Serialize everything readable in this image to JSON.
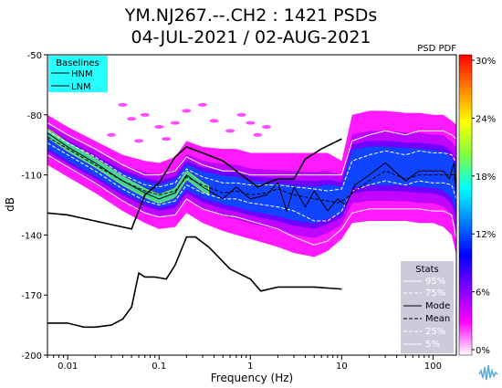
{
  "title_line1": "YM.NJ267.--.CH2 : 1421 PSDs",
  "title_line2": "04-JUL-2021 / 02-AUG-2021",
  "chart_data": {
    "type": "heatmap",
    "xlabel": "Frequency (Hz)",
    "ylabel": "dB",
    "xscale": "log",
    "xlim": [
      0.006,
      180
    ],
    "ylim": [
      -200,
      -50
    ],
    "y_ticks": [
      -50,
      -80,
      -110,
      -140,
      -170,
      -200
    ],
    "x_ticks": [
      {
        "value": 0.01,
        "label": "0.01"
      },
      {
        "value": 0.1,
        "label": "0.1"
      },
      {
        "value": 1,
        "label": "1"
      },
      {
        "value": 10,
        "label": "10"
      },
      {
        "value": 100,
        "label": "100"
      }
    ],
    "colorbar": {
      "label": "PSD PDF",
      "ticks": [
        "30%",
        "24%",
        "18%",
        "12%",
        "6%",
        "0%"
      ],
      "colors": [
        "#ff0000",
        "#ff8000",
        "#ffff00",
        "#80ff40",
        "#00ffff",
        "#0080ff",
        "#0000ff",
        "#8000ff",
        "#ff00ff",
        "#ffffff"
      ]
    },
    "baselines_legend": {
      "title": "Baselines",
      "items": [
        "HNM",
        "LNM"
      ]
    },
    "stats_legend": {
      "title": "Stats",
      "items": [
        "95%",
        "75%",
        "Mode",
        "Mean",
        "25%",
        "5%"
      ]
    },
    "series": [
      {
        "name": "HNM",
        "x": [
          0.006,
          0.01,
          0.05,
          0.07,
          0.1,
          0.15,
          0.2,
          0.3,
          0.5,
          0.8,
          1.2,
          2,
          3,
          4,
          6,
          10
        ],
        "y": [
          -129,
          -130,
          -137,
          -120,
          -114,
          -101,
          -96,
          -99,
          -103,
          -110,
          -116,
          -112,
          -112,
          -102,
          -97,
          -92
        ]
      },
      {
        "name": "LNM",
        "x": [
          0.006,
          0.01,
          0.015,
          0.02,
          0.03,
          0.04,
          0.05,
          0.06,
          0.07,
          0.09,
          0.12,
          0.15,
          0.2,
          0.25,
          0.35,
          0.6,
          1,
          1.3,
          2,
          3,
          5,
          10
        ],
        "y": [
          -184,
          -184,
          -186,
          -186,
          -185,
          -182,
          -176,
          -159,
          -161,
          -161,
          -162,
          -155,
          -141,
          -141,
          -146,
          -157,
          -162,
          -168,
          -166,
          -166,
          -166,
          -167
        ]
      },
      {
        "name": "Mode",
        "x": [
          0.006,
          0.01,
          0.02,
          0.04,
          0.07,
          0.1,
          0.15,
          0.2,
          0.3,
          0.5,
          0.7,
          1,
          1.5,
          2,
          2.5,
          3,
          4,
          5,
          7,
          9,
          11,
          14,
          20,
          30,
          50,
          70,
          100,
          130,
          150,
          170,
          180
        ],
        "y": [
          -89,
          -96,
          -104,
          -113,
          -119,
          -122,
          -119,
          -110,
          -116,
          -122,
          -116,
          -122,
          -120,
          -114,
          -128,
          -116,
          -126,
          -118,
          -128,
          -122,
          -125,
          -115,
          -110,
          -104,
          -113,
          -108,
          -108,
          -108,
          -112,
          -104,
          -120
        ]
      },
      {
        "name": "Mean",
        "x": [
          0.006,
          0.01,
          0.02,
          0.04,
          0.07,
          0.1,
          0.15,
          0.2,
          0.3,
          0.5,
          0.7,
          1,
          1.5,
          2,
          3,
          4,
          5,
          7,
          9,
          11,
          14,
          20,
          30,
          50,
          70,
          100,
          130,
          150,
          170,
          180
        ],
        "y": [
          -91,
          -97,
          -105,
          -113,
          -118,
          -120,
          -118,
          -111,
          -115,
          -119,
          -118,
          -120,
          -119,
          -117,
          -120,
          -121,
          -122,
          -123,
          -124,
          -122,
          -118,
          -113,
          -108,
          -112,
          -110,
          -110,
          -110,
          -110,
          -110,
          -118
        ]
      },
      {
        "name": "95%",
        "x": [
          0.006,
          0.01,
          0.02,
          0.04,
          0.07,
          0.1,
          0.15,
          0.2,
          0.3,
          0.5,
          0.7,
          1,
          2,
          3,
          5,
          7,
          10,
          13,
          20,
          30,
          50,
          70,
          100,
          130,
          160,
          180
        ],
        "y": [
          -84,
          -90,
          -97,
          -105,
          -110,
          -110,
          -108,
          -101,
          -105,
          -108,
          -108,
          -110,
          -110,
          -110,
          -110,
          -110,
          -110,
          -93,
          -90,
          -88,
          -90,
          -88,
          -88,
          -88,
          -90,
          -92
        ]
      },
      {
        "name": "75%",
        "x": [
          0.006,
          0.01,
          0.02,
          0.04,
          0.07,
          0.1,
          0.15,
          0.2,
          0.3,
          0.5,
          0.7,
          1,
          2,
          3,
          5,
          7,
          10,
          13,
          20,
          30,
          50,
          70,
          100,
          130,
          160,
          180
        ],
        "y": [
          -88,
          -94,
          -101,
          -110,
          -115,
          -116,
          -114,
          -107,
          -111,
          -114,
          -114,
          -115,
          -115,
          -116,
          -117,
          -118,
          -117,
          -103,
          -100,
          -98,
          -100,
          -98,
          -99,
          -99,
          -100,
          -104
        ]
      },
      {
        "name": "25%",
        "x": [
          0.006,
          0.01,
          0.02,
          0.04,
          0.07,
          0.1,
          0.15,
          0.2,
          0.3,
          0.5,
          0.7,
          1,
          2,
          3,
          5,
          7,
          10,
          13,
          20,
          30,
          50,
          70,
          100,
          130,
          160,
          180
        ],
        "y": [
          -94,
          -100,
          -108,
          -117,
          -123,
          -125,
          -123,
          -115,
          -119,
          -122,
          -122,
          -124,
          -126,
          -128,
          -133,
          -133,
          -128,
          -118,
          -115,
          -113,
          -115,
          -113,
          -114,
          -114,
          -115,
          -122
        ]
      },
      {
        "name": "5%",
        "x": [
          0.006,
          0.01,
          0.02,
          0.04,
          0.07,
          0.1,
          0.15,
          0.2,
          0.3,
          0.5,
          0.7,
          1,
          2,
          3,
          5,
          7,
          10,
          13,
          20,
          30,
          50,
          70,
          100,
          130,
          160,
          180
        ],
        "y": [
          -100,
          -106,
          -114,
          -123,
          -129,
          -131,
          -130,
          -122,
          -127,
          -130,
          -131,
          -133,
          -137,
          -141,
          -145,
          -143,
          -137,
          -129,
          -127,
          -127,
          -127,
          -127,
          -128,
          -128,
          -130,
          -142
        ]
      }
    ],
    "density_band": {
      "x": [
        0.006,
        0.01,
        0.02,
        0.04,
        0.07,
        0.1,
        0.15,
        0.2,
        0.3,
        0.5,
        0.7,
        1,
        2,
        3,
        5,
        7,
        10,
        13,
        20,
        30,
        50,
        70,
        100,
        130,
        160,
        180
      ],
      "upper": [
        -80,
        -86,
        -93,
        -100,
        -103,
        -104,
        -101,
        -93,
        -96,
        -97,
        -97,
        -99,
        -99,
        -99,
        -99,
        -99,
        -103,
        -80,
        -78,
        -78,
        -79,
        -79,
        -80,
        -80,
        -83,
        -85
      ],
      "lower": [
        -105,
        -111,
        -119,
        -128,
        -134,
        -137,
        -136,
        -129,
        -134,
        -138,
        -140,
        -142,
        -146,
        -149,
        -151,
        -148,
        -142,
        -134,
        -133,
        -133,
        -133,
        -134,
        -134,
        -136,
        -140,
        -150
      ]
    },
    "scatter_outliers": {
      "x": [
        0.03,
        0.04,
        0.05,
        0.06,
        0.07,
        0.1,
        0.12,
        0.15,
        0.2,
        0.3,
        0.4,
        0.6,
        0.8,
        1,
        1.2,
        1.5
      ],
      "y": [
        -90,
        -75,
        -82,
        -93,
        -80,
        -86,
        -92,
        -84,
        -78,
        -75,
        -83,
        -88,
        -80,
        -84,
        -90,
        -86
      ]
    }
  },
  "logo_icon": "waveform-logo-icon"
}
